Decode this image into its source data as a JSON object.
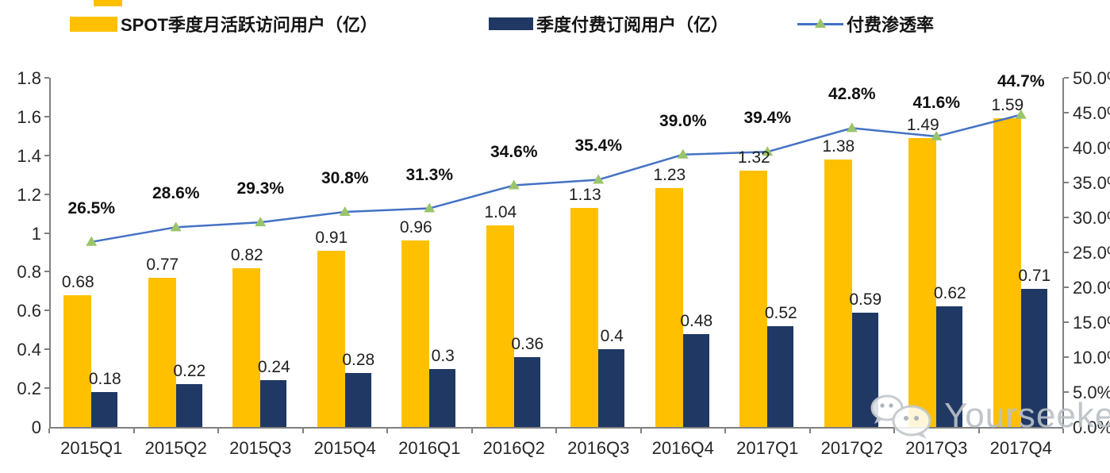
{
  "chart_data": {
    "type": "bar",
    "title": "",
    "categories": [
      "2015Q1",
      "2015Q2",
      "2015Q3",
      "2015Q4",
      "2016Q1",
      "2016Q2",
      "2016Q3",
      "2016Q4",
      "2017Q1",
      "2017Q2",
      "2017Q3",
      "2017Q4"
    ],
    "series": [
      {
        "name": "SPOT季度月活跃访问用户（亿）",
        "type": "bar",
        "axis": "left",
        "color": "#FFC000",
        "values": [
          0.68,
          0.77,
          0.82,
          0.91,
          0.96,
          1.04,
          1.13,
          1.23,
          1.32,
          1.38,
          1.49,
          1.59
        ],
        "labels": [
          "0.68",
          "0.77",
          "0.82",
          "0.91",
          "0.96",
          "1.04",
          "1.13",
          "1.23",
          "1.32",
          "1.38",
          "1.49",
          "1.59"
        ]
      },
      {
        "name": "季度付费订阅用户（亿）",
        "type": "bar",
        "axis": "left",
        "color": "#1F3864",
        "values": [
          0.18,
          0.22,
          0.24,
          0.28,
          0.3,
          0.36,
          0.4,
          0.48,
          0.52,
          0.59,
          0.62,
          0.71
        ],
        "labels": [
          "0.18",
          "0.22",
          "0.24",
          "0.28",
          "0.3",
          "0.36",
          "0.4",
          "0.48",
          "0.52",
          "0.59",
          "0.62",
          "0.71"
        ]
      },
      {
        "name": "付费渗透率",
        "type": "line",
        "axis": "right",
        "color": "#4472C4",
        "marker": "triangle",
        "marker_color": "#9AC46A",
        "values": [
          26.5,
          28.6,
          29.3,
          30.8,
          31.3,
          34.6,
          35.4,
          39.0,
          39.4,
          42.8,
          41.6,
          44.7
        ],
        "labels": [
          "26.5%",
          "28.6%",
          "29.3%",
          "30.8%",
          "31.3%",
          "34.6%",
          "35.4%",
          "39.0%",
          "39.4%",
          "42.8%",
          "41.6%",
          "44.7%"
        ]
      }
    ],
    "left_axis": {
      "min": 0,
      "max": 1.8,
      "step": 0.2,
      "ticks": [
        "0",
        "0.2",
        "0.4",
        "0.6",
        "0.8",
        "1",
        "1.2",
        "1.4",
        "1.6",
        "1.8"
      ]
    },
    "right_axis": {
      "min": 0,
      "max": 50,
      "step": 5,
      "ticks": [
        "0.0%",
        "5.0%",
        "10.0%",
        "15.0%",
        "20.0%",
        "25.0%",
        "30.0%",
        "35.0%",
        "40.0%",
        "45.0%",
        "50.0%"
      ]
    },
    "legend_position": "top",
    "grid": false,
    "axis_color": "#808080"
  },
  "watermark": {
    "text": "Yourseeker",
    "icon": "wechat-icon"
  }
}
